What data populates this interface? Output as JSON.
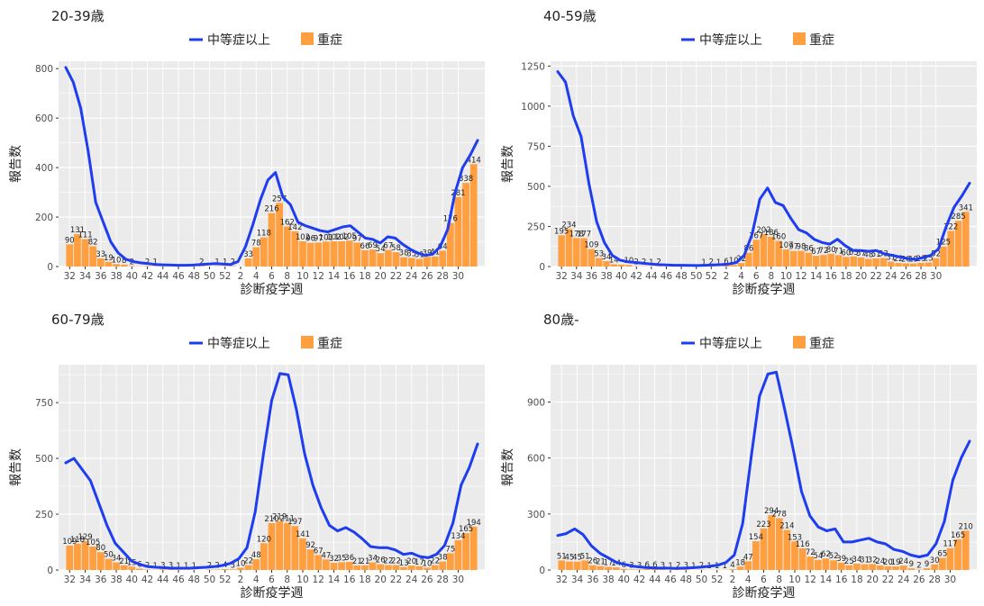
{
  "legend": {
    "line_label": "中等症以上",
    "bar_label": "重症"
  },
  "colors": {
    "line": "#1f3df0",
    "bar": "#ff9f40",
    "panel_bg": "#ebebeb",
    "grid": "#ffffff"
  },
  "chart_data": [
    {
      "title": "20-39歳",
      "type": "bar+line",
      "xlabel": "診断疫学週",
      "ylabel": "報告数",
      "ylim": [
        0,
        830
      ],
      "yticks": [
        0,
        200,
        400,
        600,
        800
      ],
      "x_tick_labels": [
        "32",
        "34",
        "36",
        "38",
        "40",
        "42",
        "44",
        "46",
        "48",
        "50",
        "52",
        "2",
        "4",
        "6",
        "8",
        "10",
        "12",
        "14",
        "16",
        "18",
        "20",
        "22",
        "24",
        "26",
        "28",
        "30"
      ],
      "bars": [
        90,
        131,
        111,
        82,
        33,
        19,
        10,
        8,
        2,
        1,
        2,
        1,
        1,
        0,
        0,
        0,
        0,
        2,
        0,
        1,
        1,
        2,
        0,
        33,
        78,
        118,
        216,
        257,
        162,
        142,
        102,
        96,
        97,
        101,
        102,
        102,
        105,
        97,
        66,
        69,
        54,
        67,
        58,
        38,
        35,
        31,
        39,
        41,
        64,
        176,
        281,
        338,
        414
      ],
      "bar_labels": [
        "90",
        "131",
        "111",
        "82",
        "33",
        "19",
        "10",
        "8",
        "2",
        "",
        "2",
        "1",
        "",
        "",
        "",
        "",
        "",
        "2",
        "",
        "1",
        "1",
        "2",
        "",
        "33",
        "78",
        "118",
        "216",
        "257",
        "162",
        "142",
        "102",
        "96",
        "97",
        "101",
        "102",
        "102",
        "105",
        "97",
        "66",
        "69",
        "54",
        "67",
        "58",
        "38",
        "35",
        "31",
        "39",
        "41",
        "64",
        "176",
        "281",
        "338",
        "414"
      ],
      "line": [
        805,
        745,
        640,
        465,
        260,
        180,
        100,
        55,
        30,
        20,
        15,
        12,
        8,
        7,
        6,
        5,
        5,
        6,
        8,
        10,
        12,
        10,
        8,
        20,
        80,
        170,
        270,
        350,
        380,
        280,
        250,
        180,
        165,
        155,
        145,
        140,
        150,
        160,
        165,
        140,
        115,
        110,
        95,
        120,
        115,
        90,
        70,
        55,
        45,
        50,
        80,
        150,
        300,
        400,
        450,
        510
      ]
    },
    {
      "title": "40-59歳",
      "type": "bar+line",
      "xlabel": "診断疫学週",
      "ylabel": "報告数",
      "ylim": [
        0,
        1280
      ],
      "yticks": [
        0,
        250,
        500,
        750,
        1000,
        1250
      ],
      "x_tick_labels": [
        "32",
        "34",
        "36",
        "38",
        "40",
        "42",
        "44",
        "46",
        "48",
        "50",
        "52",
        "2",
        "4",
        "6",
        "8",
        "10",
        "12",
        "14",
        "16",
        "18",
        "20",
        "22",
        "24",
        "26",
        "28",
        "30"
      ],
      "bars": [
        195,
        234,
        178,
        177,
        109,
        53,
        34,
        14,
        12,
        10,
        2,
        2,
        1,
        2,
        0,
        0,
        0,
        0,
        0,
        1,
        2,
        1,
        6,
        10,
        22,
        86,
        167,
        202,
        186,
        160,
        107,
        97,
        98,
        86,
        67,
        72,
        80,
        71,
        60,
        63,
        57,
        48,
        51,
        53,
        31,
        22,
        20,
        19,
        23,
        25,
        52,
        125,
        222,
        285,
        341
      ],
      "bar_labels": [
        "195",
        "234",
        "178",
        "177",
        "109",
        "53",
        "34",
        "14",
        "",
        "10",
        "2",
        "2",
        "1",
        "2",
        "",
        "",
        "",
        "",
        "",
        "1",
        "2",
        "1",
        "6",
        "10",
        "22",
        "86",
        "167",
        "202",
        "186",
        "160",
        "107",
        "97",
        "98",
        "86",
        "67",
        "72",
        "80",
        "71",
        "60",
        "63",
        "57",
        "48",
        "51",
        "53",
        "31",
        "22",
        "20",
        "19",
        "23",
        "25",
        "52",
        "125",
        "222",
        "285",
        "341"
      ],
      "line": [
        1215,
        1150,
        940,
        810,
        520,
        280,
        150,
        70,
        40,
        30,
        25,
        20,
        15,
        12,
        10,
        8,
        8,
        7,
        6,
        8,
        10,
        12,
        15,
        25,
        70,
        200,
        420,
        490,
        400,
        380,
        300,
        230,
        210,
        170,
        150,
        140,
        170,
        130,
        100,
        100,
        95,
        100,
        80,
        70,
        60,
        50,
        45,
        55,
        70,
        110,
        250,
        370,
        440,
        520
      ]
    },
    {
      "title": "60-79歳",
      "type": "bar+line",
      "xlabel": "診断疫学週",
      "ylabel": "報告数",
      "ylim": [
        0,
        920
      ],
      "yticks": [
        0,
        250,
        500,
        750
      ],
      "x_tick_labels": [
        "32",
        "34",
        "36",
        "38",
        "40",
        "42",
        "44",
        "46",
        "48",
        "50",
        "52",
        "2",
        "4",
        "6",
        "8",
        "10",
        "12",
        "14",
        "16",
        "18",
        "20",
        "22",
        "24",
        "26",
        "28",
        "30"
      ],
      "bars": [
        109,
        118,
        129,
        105,
        80,
        50,
        34,
        21,
        15,
        6,
        2,
        1,
        3,
        3,
        1,
        1,
        1,
        0,
        2,
        2,
        4,
        3,
        10,
        22,
        48,
        120,
        210,
        219,
        211,
        197,
        141,
        92,
        67,
        47,
        32,
        35,
        36,
        21,
        21,
        34,
        26,
        22,
        22,
        13,
        20,
        17,
        10,
        22,
        38,
        75,
        134,
        165,
        194
      ],
      "bar_labels": [
        "109",
        "118",
        "129",
        "105",
        "80",
        "50",
        "34",
        "21",
        "15",
        "6",
        "2",
        "1",
        "3",
        "3",
        "1",
        "1",
        "1",
        "",
        "2",
        "2",
        "4",
        "3",
        "10",
        "22",
        "48",
        "120",
        "210",
        "219",
        "211",
        "197",
        "141",
        "92",
        "67",
        "47",
        "32",
        "35",
        "36",
        "21",
        "21",
        "34",
        "26",
        "22",
        "22",
        "13",
        "20",
        "17",
        "10",
        "22",
        "38",
        "75",
        "134",
        "165",
        "194"
      ],
      "line": [
        480,
        500,
        450,
        400,
        300,
        200,
        120,
        80,
        40,
        25,
        15,
        12,
        10,
        8,
        8,
        8,
        10,
        12,
        15,
        20,
        30,
        50,
        100,
        260,
        520,
        760,
        880,
        875,
        720,
        520,
        380,
        280,
        200,
        175,
        190,
        170,
        140,
        105,
        100,
        100,
        90,
        70,
        75,
        60,
        55,
        70,
        110,
        210,
        380,
        460,
        565
      ]
    },
    {
      "title": "80歳-",
      "type": "bar+line",
      "xlabel": "診断疫学週",
      "ylabel": "報告数",
      "ylim": [
        0,
        1100
      ],
      "yticks": [
        0,
        300,
        600,
        900
      ],
      "x_tick_labels": [
        "32",
        "34",
        "36",
        "38",
        "40",
        "42",
        "44",
        "46",
        "48",
        "50",
        "52",
        "2",
        "4",
        "6",
        "8",
        "10",
        "12",
        "14",
        "16",
        "18",
        "20",
        "22",
        "24",
        "26",
        "28",
        "30"
      ],
      "bars": [
        51,
        45,
        45,
        51,
        26,
        21,
        17,
        14,
        6,
        3,
        3,
        6,
        6,
        3,
        1,
        2,
        3,
        1,
        2,
        1,
        1,
        1,
        4,
        18,
        47,
        154,
        223,
        294,
        278,
        214,
        153,
        116,
        72,
        54,
        62,
        52,
        39,
        25,
        34,
        31,
        32,
        24,
        20,
        19,
        24,
        9,
        2,
        9,
        30,
        65,
        117,
        165,
        210
      ],
      "bar_labels": [
        "51",
        "45",
        "45",
        "51",
        "26",
        "21",
        "17",
        "14",
        "6",
        "3",
        "3",
        "6",
        "6",
        "3",
        "1",
        "2",
        "3",
        "1",
        "2",
        "1",
        "1",
        "1",
        "4",
        "18",
        "47",
        "154",
        "223",
        "294",
        "278",
        "214",
        "153",
        "116",
        "72",
        "54",
        "62",
        "52",
        "39",
        "25",
        "34",
        "31",
        "32",
        "24",
        "20",
        "19",
        "24",
        "9",
        "2",
        "9",
        "30",
        "65",
        "117",
        "165",
        "210"
      ],
      "line": [
        185,
        195,
        220,
        190,
        130,
        90,
        65,
        40,
        30,
        20,
        15,
        12,
        10,
        10,
        8,
        10,
        12,
        15,
        20,
        25,
        40,
        80,
        250,
        600,
        930,
        1050,
        1060,
        860,
        650,
        420,
        290,
        230,
        210,
        220,
        150,
        150,
        160,
        170,
        150,
        140,
        110,
        100,
        80,
        70,
        80,
        140,
        260,
        480,
        600,
        690
      ]
    }
  ]
}
